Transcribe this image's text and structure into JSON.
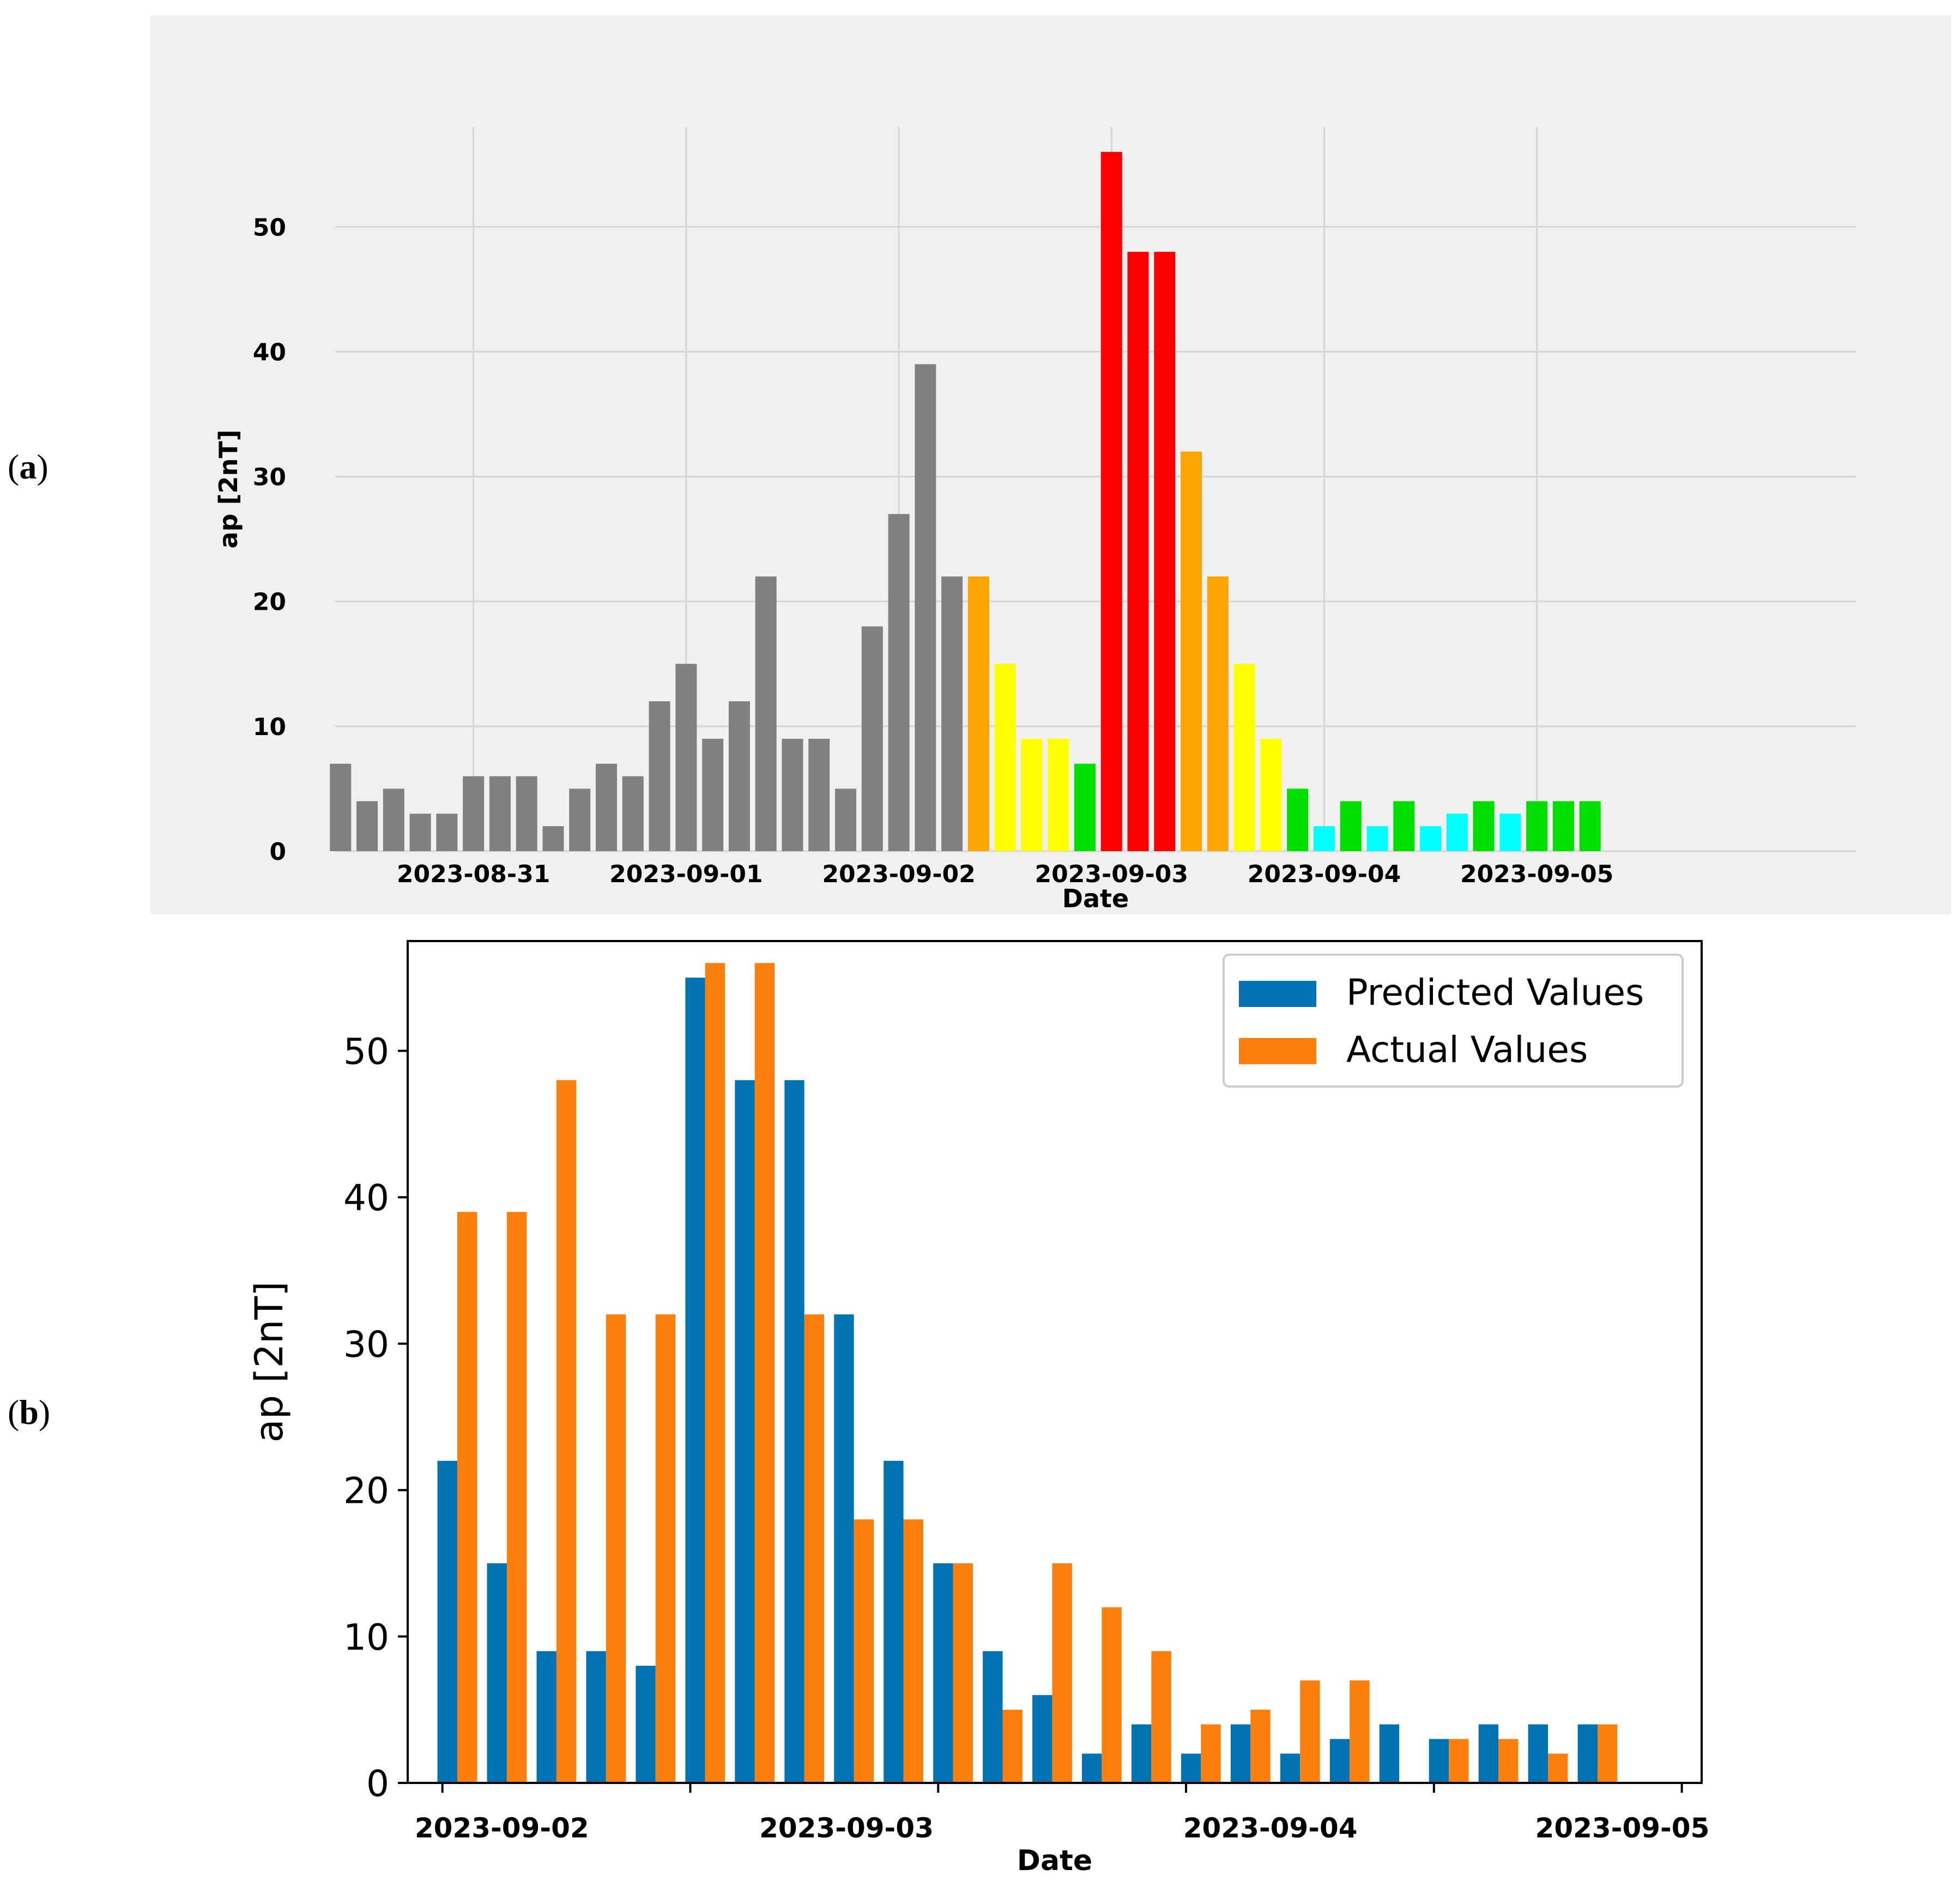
{
  "panels": {
    "a": {
      "open": "(",
      "letter": "a",
      "close": ")"
    },
    "b": {
      "open": "(",
      "letter": "b",
      "close": ")"
    }
  },
  "colors": {
    "gray": "#808080",
    "orange": "#ffa500",
    "yellow": "#ffff00",
    "green": "#00e000",
    "red": "#ff0000",
    "cyan": "#00ffff",
    "predicted": "#0173b2",
    "actual": "#fc7f0e",
    "panel_a_bg": "#f0f0f0"
  },
  "chart_data": [
    {
      "id": "a",
      "type": "bar",
      "title": "",
      "xlabel": "Date",
      "ylabel": "ap [2nT]",
      "ylim": [
        0,
        58
      ],
      "yticks": [
        0,
        10,
        20,
        30,
        40,
        50
      ],
      "xlim": [
        -5.2,
        52
      ],
      "x_ticks": [
        {
          "pos": 0,
          "label": "2023-08-31"
        },
        {
          "pos": 8,
          "label": "2023-09-01"
        },
        {
          "pos": 16,
          "label": "2023-09-02"
        },
        {
          "pos": 24,
          "label": "2023-09-03"
        },
        {
          "pos": 32,
          "label": "2023-09-04"
        },
        {
          "pos": 40,
          "label": "2023-09-05"
        }
      ],
      "grid": true,
      "bar_start": -5,
      "values": [
        7,
        4,
        5,
        3,
        3,
        6,
        6,
        6,
        2,
        5,
        7,
        6,
        12,
        15,
        9,
        12,
        22,
        9,
        9,
        5,
        18,
        27,
        39,
        22,
        22,
        15,
        9,
        9,
        7,
        56,
        48,
        48,
        32,
        22,
        15,
        9,
        5,
        2,
        4,
        2,
        4,
        2,
        3,
        4,
        3,
        4,
        4,
        4
      ],
      "colors": [
        "gray",
        "gray",
        "gray",
        "gray",
        "gray",
        "gray",
        "gray",
        "gray",
        "gray",
        "gray",
        "gray",
        "gray",
        "gray",
        "gray",
        "gray",
        "gray",
        "gray",
        "gray",
        "gray",
        "gray",
        "gray",
        "gray",
        "gray",
        "gray",
        "orange",
        "yellow",
        "yellow",
        "yellow",
        "green",
        "red",
        "red",
        "red",
        "orange",
        "orange",
        "yellow",
        "yellow",
        "green",
        "cyan",
        "green",
        "cyan",
        "green",
        "cyan",
        "cyan",
        "green",
        "cyan",
        "green",
        "green",
        "green"
      ]
    },
    {
      "id": "b",
      "type": "bar",
      "title": "",
      "xlabel": "Date",
      "ylabel": "ap [2nT]",
      "ylim": [
        0,
        57.5
      ],
      "yticks": [
        0,
        10,
        20,
        30,
        40,
        50
      ],
      "xlim": [
        -1.0,
        25.1
      ],
      "x_ticks": [
        {
          "pos": -0.3,
          "label": "2023-09-02",
          "label_pos": 0.9
        },
        {
          "pos": 4.7,
          "label": "",
          "label_pos": 4.7
        },
        {
          "pos": 9.7,
          "label": "2023-09-03",
          "label_pos": 7.85
        },
        {
          "pos": 14.7,
          "label": "",
          "label_pos": 14.7
        },
        {
          "pos": 19.7,
          "label": "2023-09-04",
          "label_pos": 16.4
        },
        {
          "pos": 24.7,
          "label": "2023-09-05",
          "label_pos": 23.5
        }
      ],
      "legend": "top-right",
      "series": [
        {
          "name": "Predicted Values",
          "color": "predicted",
          "values": [
            22,
            15,
            9,
            9,
            8,
            55,
            48,
            48,
            32,
            22,
            15,
            9,
            6,
            2,
            4,
            2,
            4,
            2,
            3,
            4,
            3,
            4,
            4,
            4
          ]
        },
        {
          "name": "Actual Values",
          "color": "actual",
          "values": [
            39,
            39,
            48,
            32,
            32,
            56,
            56,
            32,
            18,
            18,
            15,
            5,
            15,
            12,
            9,
            4,
            5,
            7,
            7,
            0,
            3,
            3,
            2,
            4
          ]
        }
      ]
    }
  ]
}
